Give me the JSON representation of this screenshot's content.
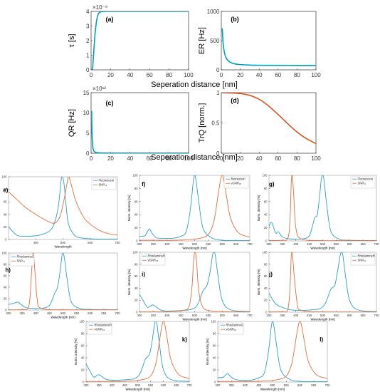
{
  "top_xlabel": "Seperation distance [nm]",
  "chart_data": [
    {
      "id": "a",
      "type": "line",
      "label": "(a)",
      "ylabel": "τ [s]",
      "xlabel": "",
      "xlim": [
        0,
        100
      ],
      "ylim": [
        0,
        4
      ],
      "xticks": [
        "0",
        "20",
        "40",
        "60",
        "80",
        "100"
      ],
      "yticks": [
        "0",
        "1",
        "2",
        "3",
        "4"
      ],
      "yexp": "×10⁻⁹",
      "series": [
        {
          "color": "#00a0b4",
          "x": [
            0.8,
            1.5,
            2,
            3,
            4,
            5,
            6,
            7,
            8,
            10,
            15,
            20,
            30,
            40,
            60,
            80,
            100
          ],
          "y": [
            0,
            0.1,
            0.5,
            1.5,
            2.4,
            3.05,
            3.5,
            3.75,
            3.88,
            3.97,
            4.0,
            4.0,
            4.0,
            4.0,
            4.0,
            4.0,
            4.0
          ]
        }
      ]
    },
    {
      "id": "b",
      "type": "line",
      "label": "(b)",
      "ylabel": "ER [Hz]",
      "xlabel": "",
      "xlim": [
        0,
        100
      ],
      "ylim": [
        0,
        1000
      ],
      "xticks": [
        "0",
        "20",
        "40",
        "60",
        "80",
        "100"
      ],
      "yticks": [
        "0",
        "500",
        "1000"
      ],
      "yexp": "",
      "series": [
        {
          "color": "#00a0b4",
          "x": [
            1,
            1.5,
            2,
            3,
            4,
            5,
            7,
            10,
            15,
            20,
            30,
            40,
            60,
            80,
            100
          ],
          "y": [
            710,
            560,
            440,
            320,
            250,
            205,
            160,
            125,
            100,
            90,
            82,
            79,
            77,
            76,
            76
          ]
        }
      ]
    },
    {
      "id": "c",
      "type": "line",
      "label": "(c)",
      "ylabel": "QR [Hz]",
      "xlabel": "",
      "xlim": [
        0,
        100
      ],
      "ylim": [
        0,
        15
      ],
      "xticks": [
        "0",
        "20",
        "40",
        "60",
        "80",
        "100"
      ],
      "yticks": [
        "0",
        "5",
        "10",
        "15"
      ],
      "yexp": "×10¹²",
      "series": [
        {
          "color": "#00a0b4",
          "x": [
            0.5,
            0.8,
            1.2,
            1.8,
            2.5,
            4,
            6,
            10,
            20,
            50,
            100
          ],
          "y": [
            10.5,
            6.5,
            3.5,
            1.5,
            0.7,
            0.3,
            0.15,
            0.08,
            0.05,
            0.03,
            0.03
          ]
        }
      ]
    },
    {
      "id": "d",
      "type": "line",
      "label": "(d)",
      "ylabel": "TrQ [norm.]",
      "xlabel": "",
      "xlim": [
        0,
        100
      ],
      "ylim": [
        0,
        1
      ],
      "xticks": [
        "0",
        "20",
        "40",
        "60",
        "80",
        "100"
      ],
      "yticks": [
        "0",
        "0.5",
        "1"
      ],
      "yexp": "",
      "series": [
        {
          "color": "#d9531e",
          "x": [
            0,
            10,
            20,
            30,
            40,
            50,
            60,
            70,
            80,
            90,
            100
          ],
          "y": [
            1,
            0.995,
            0.985,
            0.955,
            0.89,
            0.78,
            0.64,
            0.49,
            0.35,
            0.24,
            0.16
          ]
        }
      ]
    },
    {
      "id": "e",
      "type": "line",
      "label": "e)",
      "xlabel": "Wavelength",
      "ylabel": "",
      "xlim": [
        300,
        700
      ],
      "ylim": [
        0,
        100
      ],
      "xticks": [
        "400",
        "500",
        "600",
        "700"
      ],
      "yticks": [
        "0",
        "20",
        "40",
        "60",
        "80",
        "100"
      ],
      "series": [
        {
          "name": "Fluorescein",
          "color": "#2c9fc6",
          "x": [
            300,
            330,
            360,
            400,
            430,
            460,
            480,
            490,
            495,
            500,
            505,
            510,
            520,
            540,
            560,
            600,
            650,
            700
          ],
          "y": [
            20,
            7,
            5,
            6,
            9,
            18,
            45,
            80,
            100,
            98,
            85,
            60,
            25,
            8,
            3,
            1,
            0.5,
            0.5
          ]
        },
        {
          "name": "SNP₁₂",
          "color": "#e36e3d",
          "x": [
            300,
            330,
            360,
            400,
            440,
            470,
            490,
            505,
            515,
            520,
            525,
            535,
            550,
            580,
            620,
            660,
            700
          ],
          "y": [
            76,
            64,
            52,
            40,
            30,
            26,
            38,
            66,
            90,
            100,
            96,
            80,
            58,
            33,
            18,
            10,
            7
          ]
        }
      ]
    },
    {
      "id": "f",
      "type": "line",
      "label": "f)",
      "xlabel": "Wavelength [nm]",
      "ylabel": "Norm. intensity [%]",
      "xlim": [
        300,
        700
      ],
      "ylim": [
        0,
        100
      ],
      "xticks": [
        "300",
        "350",
        "400",
        "450",
        "500",
        "550",
        "600",
        "650",
        "700"
      ],
      "yticks": [
        "0",
        "20",
        "40",
        "60",
        "80",
        "100"
      ],
      "series": [
        {
          "name": "fluorescein",
          "color": "#2c9fc6",
          "x": [
            300,
            320,
            335,
            345,
            360,
            380,
            420,
            450,
            470,
            485,
            495,
            500,
            505,
            515,
            530,
            560,
            600,
            650,
            700
          ],
          "y": [
            7,
            8,
            18,
            12,
            5,
            4,
            4,
            7,
            15,
            50,
            90,
            100,
            92,
            60,
            20,
            5,
            1,
            0.5,
            0.5
          ]
        },
        {
          "name": "νGNR₂₀",
          "color": "#e36e3d",
          "x": [
            300,
            360,
            420,
            480,
            520,
            550,
            570,
            585,
            595,
            600,
            605,
            615,
            630,
            660,
            700
          ],
          "y": [
            1,
            1,
            1,
            2,
            4,
            10,
            30,
            70,
            95,
            100,
            95,
            70,
            35,
            12,
            6
          ]
        }
      ]
    },
    {
      "id": "g",
      "type": "line",
      "label": "g)",
      "xlabel": "Wavelength [nm]",
      "ylabel": "Norm. intensity [%]",
      "xlim": [
        300,
        700
      ],
      "ylim": [
        0,
        100
      ],
      "xticks": [
        "300",
        "350",
        "400",
        "450",
        "500",
        "550",
        "600",
        "650",
        "700"
      ],
      "yticks": [
        "0",
        "20",
        "40",
        "60",
        "80",
        "100"
      ],
      "series": [
        {
          "name": "Fluorescein",
          "color": "#2c9fc6",
          "x": [
            300,
            310,
            325,
            335,
            350,
            380,
            420,
            450,
            470,
            480,
            490,
            495,
            500,
            505,
            515,
            530,
            560,
            600,
            700
          ],
          "y": [
            22,
            28,
            12,
            14,
            6,
            3,
            3,
            8,
            35,
            40,
            75,
            95,
            100,
            92,
            55,
            15,
            3,
            1,
            0.5
          ]
        },
        {
          "name": "SNP₁₂",
          "color": "#e36e3d",
          "x": [
            300,
            350,
            370,
            378,
            383,
            387,
            392,
            400,
            420,
            500,
            600,
            700
          ],
          "y": [
            0.5,
            1,
            4,
            30,
            90,
            100,
            70,
            20,
            3,
            0.5,
            0.5,
            0.5
          ]
        }
      ]
    },
    {
      "id": "h",
      "type": "line",
      "label": "h)",
      "xlabel": "Wavelength [nm]",
      "ylabel": "Norm. intensity [%]",
      "xlim": [
        300,
        700
      ],
      "ylim": [
        0,
        100
      ],
      "xticks": [
        "300",
        "350",
        "400",
        "450",
        "500",
        "550",
        "600",
        "650",
        "700"
      ],
      "yticks": [
        "0",
        "20",
        "40",
        "60",
        "80",
        "100"
      ],
      "series": [
        {
          "name": "RhodamineG",
          "color": "#2c9fc6",
          "x": [
            300,
            320,
            335,
            345,
            360,
            380,
            420,
            450,
            470,
            480,
            490,
            498,
            505,
            515,
            530,
            560,
            600,
            700
          ],
          "y": [
            10,
            12,
            14,
            10,
            5,
            3,
            3,
            8,
            30,
            40,
            70,
            100,
            92,
            55,
            15,
            3,
            1,
            0.5
          ]
        },
        {
          "name": "SNP₁₂",
          "color": "#e36e3d",
          "x": [
            300,
            350,
            375,
            385,
            390,
            395,
            405,
            420,
            500,
            700
          ],
          "y": [
            0.5,
            1,
            8,
            70,
            100,
            80,
            20,
            3,
            0.5,
            0.5
          ]
        }
      ]
    },
    {
      "id": "i",
      "type": "line",
      "label": "i)",
      "xlabel": "Wavelength [nm]",
      "ylabel": "Norm. intensity [%]",
      "xlim": [
        300,
        700
      ],
      "ylim": [
        0,
        100
      ],
      "xticks": [
        "300",
        "350",
        "400",
        "450",
        "500",
        "550",
        "600",
        "650",
        "700"
      ],
      "yticks": [
        "0",
        "20",
        "40",
        "60",
        "80",
        "100"
      ],
      "series": [
        {
          "name": "RhodamineR",
          "color": "#2c9fc6",
          "x": [
            300,
            315,
            330,
            350,
            380,
            420,
            460,
            490,
            510,
            530,
            545,
            555,
            565,
            570,
            575,
            585,
            600,
            630,
            700
          ],
          "y": [
            30,
            18,
            8,
            12,
            3,
            2,
            3,
            5,
            12,
            35,
            45,
            65,
            95,
            100,
            95,
            60,
            20,
            4,
            1
          ]
        },
        {
          "name": "νGNR₂₅",
          "color": "#e36e3d",
          "x": [
            300,
            400,
            460,
            480,
            490,
            497,
            502,
            507,
            515,
            530,
            560,
            600,
            700
          ],
          "y": [
            0.5,
            1,
            3,
            10,
            40,
            90,
            100,
            85,
            35,
            8,
            2,
            1,
            0.5
          ]
        }
      ]
    },
    {
      "id": "j",
      "type": "line",
      "label": "j)",
      "xlabel": "Wavelength [nm]",
      "ylabel": "Norm. intensity [%]",
      "xlim": [
        300,
        700
      ],
      "ylim": [
        0,
        100
      ],
      "xticks": [
        "300",
        "350",
        "400",
        "450",
        "500",
        "550",
        "600",
        "650",
        "700"
      ],
      "yticks": [
        "0",
        "20",
        "40",
        "60",
        "80",
        "100"
      ],
      "series": [
        {
          "name": "RhodamineR",
          "color": "#2c9fc6",
          "x": [
            300,
            315,
            330,
            350,
            380,
            420,
            460,
            490,
            510,
            530,
            545,
            555,
            565,
            570,
            575,
            585,
            600,
            630,
            700
          ],
          "y": [
            32,
            20,
            12,
            8,
            4,
            3,
            4,
            6,
            15,
            38,
            45,
            68,
            95,
            100,
            95,
            60,
            20,
            4,
            1
          ]
        },
        {
          "name": "SNP₁₂",
          "color": "#e36e3d",
          "x": [
            300,
            350,
            370,
            378,
            383,
            387,
            393,
            405,
            420,
            500,
            700
          ],
          "y": [
            0.5,
            1,
            4,
            40,
            95,
            100,
            65,
            15,
            3,
            0.5,
            0.5
          ]
        }
      ]
    },
    {
      "id": "k",
      "type": "line",
      "label": "k)",
      "xlabel": "Wavelength [nm]",
      "ylabel": "Norm. intensity [%]",
      "xlim": [
        300,
        700
      ],
      "ylim": [
        0,
        100
      ],
      "xticks": [
        "300",
        "350",
        "400",
        "450",
        "500",
        "550",
        "600",
        "650",
        "700"
      ],
      "yticks": [
        "0",
        "20",
        "40",
        "60",
        "80",
        "100"
      ],
      "series": [
        {
          "name": "RhodamineR",
          "color": "#2c9fc6",
          "x": [
            300,
            315,
            330,
            350,
            380,
            420,
            460,
            490,
            510,
            530,
            545,
            555,
            565,
            570,
            575,
            585,
            600,
            630,
            700
          ],
          "y": [
            30,
            18,
            8,
            12,
            4,
            3,
            4,
            6,
            15,
            38,
            45,
            65,
            95,
            100,
            95,
            60,
            20,
            4,
            1
          ]
        },
        {
          "name": "νGNR₂₀",
          "color": "#e36e3d",
          "x": [
            300,
            360,
            420,
            480,
            520,
            550,
            570,
            585,
            595,
            600,
            605,
            615,
            630,
            660,
            700
          ],
          "y": [
            1,
            1,
            1,
            2,
            4,
            10,
            30,
            70,
            95,
            100,
            95,
            70,
            35,
            12,
            6
          ]
        }
      ]
    },
    {
      "id": "l",
      "type": "line",
      "label": "l)",
      "xlabel": "Wavelength [nm]",
      "ylabel": "Norm. intensity [%]",
      "xlim": [
        300,
        700
      ],
      "ylim": [
        0,
        100
      ],
      "xticks": [
        "300",
        "350",
        "400",
        "450",
        "500",
        "550",
        "600",
        "650",
        "700"
      ],
      "yticks": [
        "0",
        "20",
        "40",
        "60",
        "80",
        "100"
      ],
      "series": [
        {
          "name": "RhodamineG",
          "color": "#2c9fc6",
          "x": [
            300,
            320,
            335,
            345,
            360,
            380,
            420,
            450,
            470,
            485,
            495,
            500,
            505,
            515,
            530,
            560,
            600,
            700
          ],
          "y": [
            7,
            8,
            14,
            10,
            5,
            3,
            3,
            7,
            15,
            50,
            90,
            100,
            92,
            60,
            20,
            5,
            1,
            0.5
          ]
        },
        {
          "name": "νGNR₂₀",
          "color": "#e36e3d",
          "x": [
            300,
            360,
            420,
            480,
            520,
            550,
            570,
            585,
            595,
            600,
            605,
            615,
            630,
            660,
            700
          ],
          "y": [
            1,
            1,
            1,
            2,
            4,
            10,
            30,
            70,
            95,
            100,
            95,
            70,
            35,
            12,
            6
          ]
        }
      ]
    }
  ]
}
